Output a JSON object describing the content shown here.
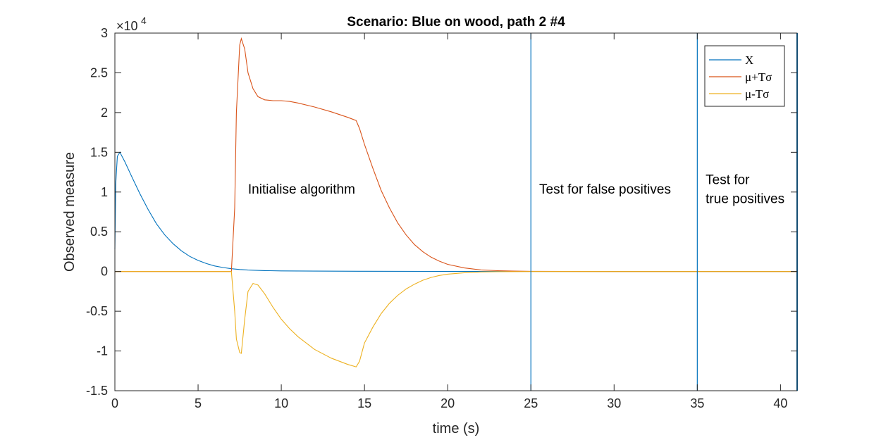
{
  "chart_data": {
    "type": "line",
    "title": "Scenario: Blue on wood, path 2 #4",
    "xlabel": "time (s)",
    "ylabel": "Observed measure",
    "xlim": [
      0,
      41
    ],
    "ylim": [
      -15000,
      30000
    ],
    "y_exponent_label": "×10",
    "y_exponent_power": "4",
    "xticks": [
      0,
      5,
      10,
      15,
      20,
      25,
      30,
      35,
      40
    ],
    "xtick_labels": [
      "0",
      "5",
      "10",
      "15",
      "20",
      "25",
      "30",
      "35",
      "40"
    ],
    "yticks": [
      -15000,
      -10000,
      -5000,
      0,
      5000,
      10000,
      15000,
      20000,
      25000,
      30000
    ],
    "ytick_labels": [
      "-1.5",
      "-1",
      "-0.5",
      "0",
      "0.5",
      "1",
      "1.5",
      "2",
      "2.5",
      "3"
    ],
    "grid": false,
    "legend_position": "top-right",
    "series": [
      {
        "name": "X",
        "color": "#0072BD",
        "x": [
          0,
          0.05,
          0.15,
          0.3,
          0.6,
          1,
          1.5,
          2,
          2.5,
          3,
          3.5,
          4,
          4.5,
          5,
          5.5,
          6,
          6.5,
          7,
          7.5,
          8,
          9,
          10,
          12,
          15,
          20,
          25,
          30,
          35,
          40,
          41
        ],
        "y": [
          2800,
          11000,
          14500,
          15000,
          13800,
          12000,
          9800,
          7800,
          6000,
          4600,
          3500,
          2600,
          1900,
          1400,
          1000,
          700,
          500,
          350,
          250,
          180,
          110,
          80,
          50,
          30,
          15,
          10,
          5,
          5,
          5,
          5
        ]
      },
      {
        "name": "μ+Tσ",
        "color": "#D95319",
        "x": [
          0,
          7,
          7.2,
          7.3,
          7.5,
          7.6,
          7.8,
          8,
          8.3,
          8.6,
          9,
          9.5,
          10,
          10.5,
          11,
          12,
          13,
          14,
          14.5,
          14.7,
          15,
          15.5,
          16,
          16.5,
          17,
          17.5,
          18,
          18.5,
          19,
          19.5,
          20,
          21,
          22,
          23,
          24,
          25,
          30,
          35,
          40,
          41
        ],
        "y": [
          0,
          0,
          8000,
          20000,
          28500,
          29300,
          28000,
          25000,
          23000,
          22000,
          21600,
          21500,
          21500,
          21400,
          21200,
          20700,
          20100,
          19400,
          19000,
          18000,
          16000,
          13000,
          10200,
          8000,
          6100,
          4600,
          3400,
          2500,
          1800,
          1300,
          900,
          450,
          200,
          100,
          50,
          20,
          0,
          0,
          0,
          0
        ]
      },
      {
        "name": "μ-Tσ",
        "color": "#EDB120",
        "x": [
          0,
          7,
          7.2,
          7.3,
          7.5,
          7.6,
          7.8,
          8,
          8.3,
          8.6,
          9,
          9.5,
          10,
          10.5,
          11,
          12,
          13,
          14,
          14.5,
          14.7,
          15,
          15.5,
          16,
          16.5,
          17,
          17.5,
          18,
          18.5,
          19,
          19.5,
          20,
          21,
          22,
          23,
          24,
          25,
          30,
          35,
          40,
          41
        ],
        "y": [
          0,
          0,
          -5000,
          -8500,
          -10200,
          -10300,
          -6000,
          -2500,
          -1500,
          -1700,
          -2800,
          -4500,
          -6000,
          -7200,
          -8200,
          -9800,
          -10900,
          -11700,
          -12000,
          -11300,
          -9000,
          -7000,
          -5300,
          -4000,
          -3000,
          -2200,
          -1600,
          -1100,
          -750,
          -500,
          -330,
          -150,
          -60,
          -20,
          -10,
          0,
          0,
          0,
          0,
          0
        ]
      }
    ],
    "vertical_lines": [
      25,
      35,
      41
    ],
    "vertical_line_color": "#0072BD",
    "annotations": [
      {
        "text": "Initialise algorithm",
        "x": 8,
        "y": 9800
      },
      {
        "text": "Test for false positives",
        "x": 25.5,
        "y": 9800
      },
      {
        "text": "Test for",
        "x": 35.5,
        "y": 11000
      },
      {
        "text": "true positives",
        "x": 35.5,
        "y": 8600
      }
    ]
  }
}
